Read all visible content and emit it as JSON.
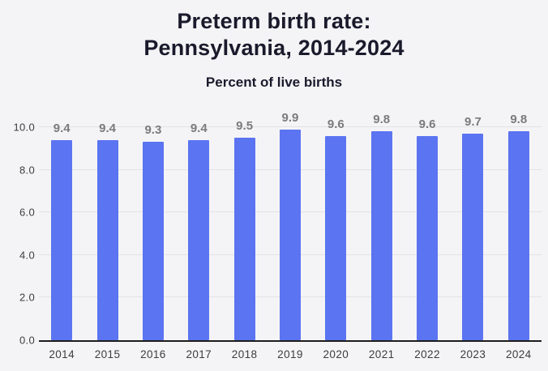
{
  "header": {
    "title_lines": [
      "Preterm birth rate:",
      "Pennsylvania, 2014-2024"
    ],
    "subtitle": "Percent of live births"
  },
  "chart_data": {
    "type": "bar",
    "title": "Preterm birth rate: Pennsylvania, 2014-2024",
    "subtitle": "Percent of live births",
    "categories": [
      "2014",
      "2015",
      "2016",
      "2017",
      "2018",
      "2019",
      "2020",
      "2021",
      "2022",
      "2023",
      "2024"
    ],
    "values": [
      9.4,
      9.4,
      9.3,
      9.4,
      9.5,
      9.9,
      9.6,
      9.8,
      9.6,
      9.7,
      9.8
    ],
    "xlabel": "",
    "ylabel": "Percent of live births",
    "ylim": [
      0,
      10
    ],
    "ytick_interval": 2,
    "ytick_labels": [
      "0.0",
      "2.0",
      "4.0",
      "6.0",
      "8.0",
      "10.0"
    ],
    "grid": true,
    "legend": "none",
    "value_labels_shown": true,
    "bar_color": "#5b74f1",
    "value_label_color": "#7b7b7d",
    "axis_text_color": "#3d3d3d",
    "gridline_color": "#e3e3e6",
    "baseline_color": "#1d1d1d",
    "background_color": "#f4f4f6",
    "title_color": "#1a1a2c"
  }
}
